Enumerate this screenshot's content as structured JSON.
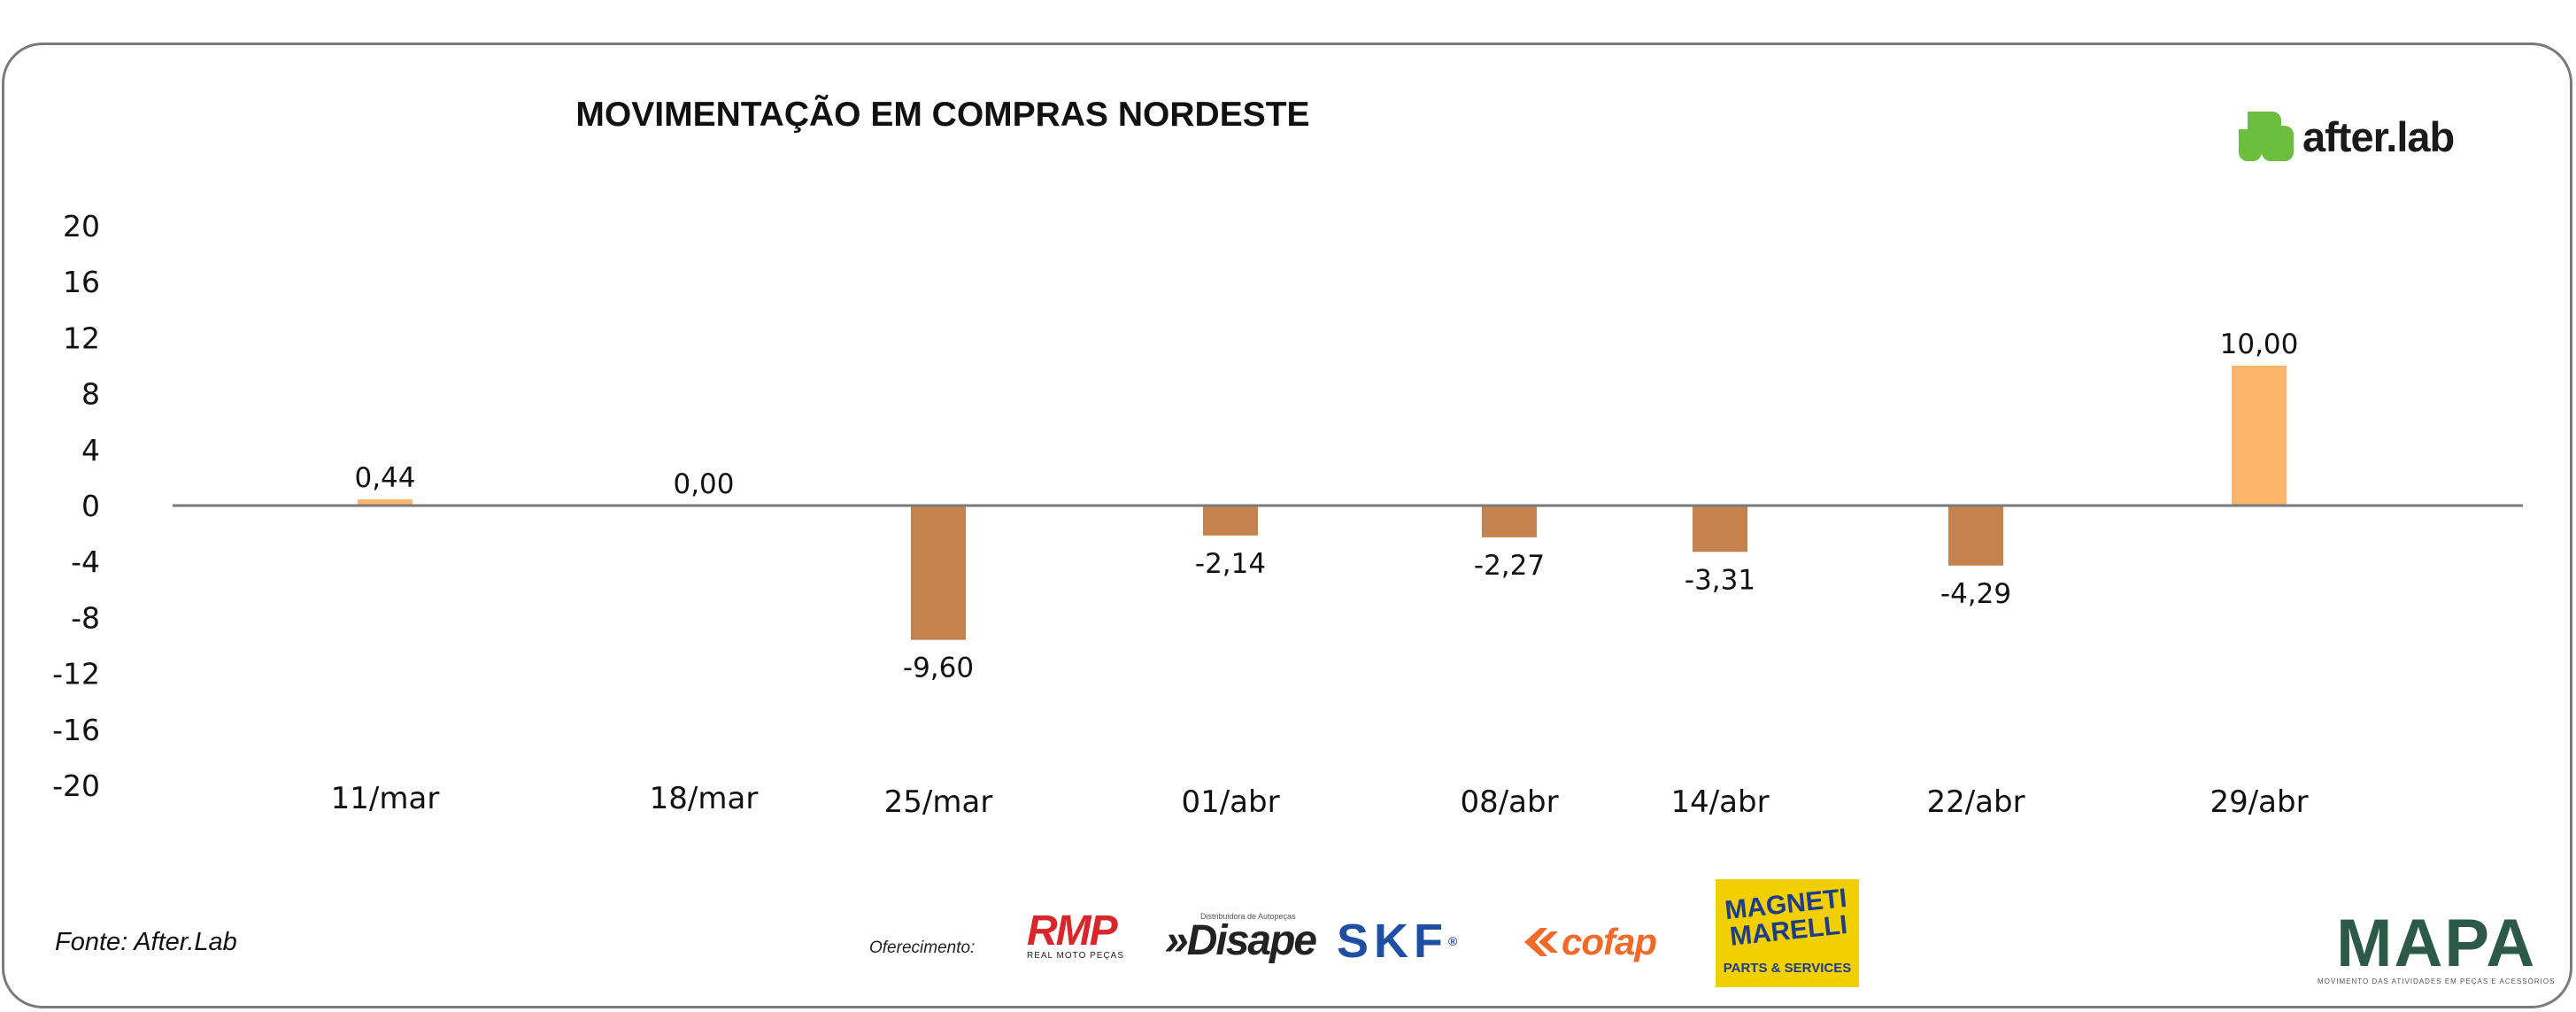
{
  "chart_data": {
    "type": "bar",
    "title": "MOVIMENTAÇÃO EM COMPRAS NORDESTE",
    "categories": [
      "11/mar",
      "18/mar",
      "25/mar",
      "01/abr",
      "08/abr",
      "14/abr",
      "22/abr",
      "29/abr"
    ],
    "values": [
      0.44,
      0.0,
      -9.6,
      -2.14,
      -2.27,
      -3.31,
      -4.29,
      10.0
    ],
    "data_labels": [
      "0,44",
      "0,00",
      "-9,60",
      "-2,14",
      "-2,27",
      "-3,31",
      "-4,29",
      "10,00"
    ],
    "ylim": [
      -20,
      20
    ],
    "yticks": [
      20,
      16,
      12,
      8,
      4,
      0,
      -4,
      -8,
      -12,
      -16,
      -20
    ],
    "xlabel": "",
    "ylabel": "",
    "grid": false,
    "legend": "none",
    "colors": {
      "negative": "#c4834e",
      "positive": "#fbb56a",
      "axis": "#7a7a7a"
    }
  },
  "brand": {
    "name": "after.lab",
    "icon": "after-lab-logo-icon",
    "icon_color": "#6cbf3e"
  },
  "footer": {
    "source": "Fonte: After.Lab",
    "offer_label": "Oferecimento:",
    "sponsors": {
      "rmp": {
        "name": "RMP",
        "tagline": "REAL MOTO PEÇAS"
      },
      "disape": {
        "name": "»Disape",
        "tagline": "Distribuidora de Autopeças"
      },
      "skf": {
        "name": "SKF"
      },
      "cofap": {
        "name": "cofap"
      },
      "magneti": {
        "name": "MAGNETI MARELLI",
        "tagline": "PARTS & SERVICES"
      },
      "mapa": {
        "name": "MAPA",
        "tagline": "MOVIMENTO DAS ATIVIDADES EM PEÇAS E ACESSÓRIOS"
      }
    }
  }
}
